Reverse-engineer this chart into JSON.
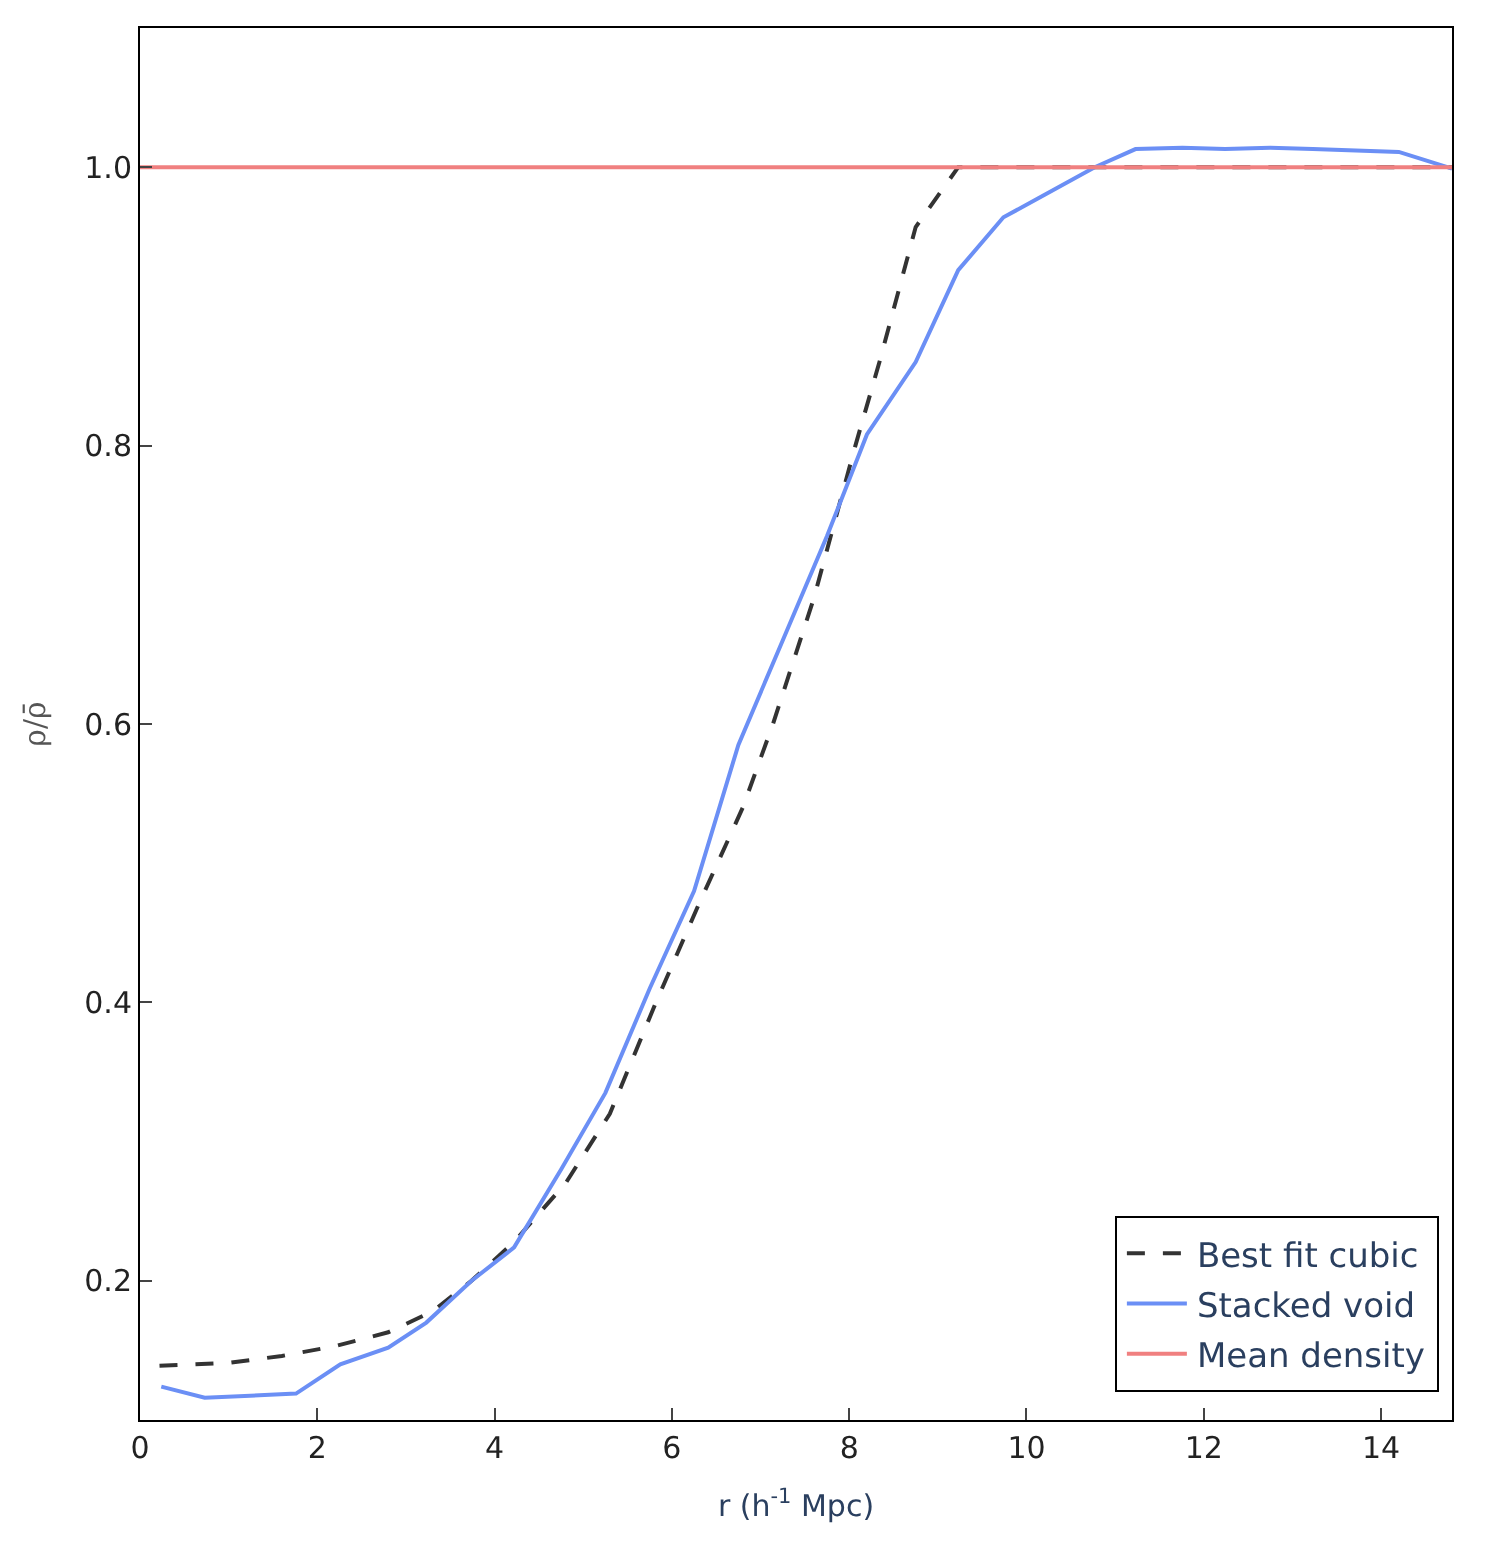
{
  "chart_data": {
    "type": "line",
    "xlabel": "r (h$^{-1}$ Mpc)",
    "ylabel": "ρ/ρ̄",
    "xlim": [
      0,
      14.8
    ],
    "ylim": [
      0.1,
      1.1
    ],
    "xticks": [
      0,
      2,
      4,
      6,
      8,
      10,
      12,
      14
    ],
    "yticks": [
      0.2,
      0.4,
      0.6,
      0.8,
      {
        "value": 1.0,
        "label": "1.0"
      }
    ],
    "legend": "bottom right",
    "series": [
      {
        "name": "Best fit cubic",
        "color": "#333333",
        "line_style": "dashed",
        "x": [
          0.22,
          1.0,
          1.6,
          2.2,
          2.8,
          3.3,
          3.74,
          4.22,
          4.8,
          5.3,
          5.82,
          6.3,
          6.8,
          7.14,
          7.6,
          8.07,
          8.35,
          8.75,
          9.23,
          14.8
        ],
        "values": [
          0.139,
          0.141,
          0.146,
          0.153,
          0.163,
          0.178,
          0.2,
          0.228,
          0.27,
          0.32,
          0.4,
          0.47,
          0.54,
          0.6,
          0.69,
          0.8,
          0.862,
          0.957,
          1.0,
          1.0
        ]
      },
      {
        "name": "Stacked void",
        "color": "#6b8ff5",
        "line_style": "solid",
        "x": [
          0.24,
          0.73,
          1.76,
          2.26,
          2.8,
          3.23,
          3.74,
          4.22,
          4.75,
          5.25,
          5.75,
          6.25,
          6.75,
          7.25,
          7.75,
          8.2,
          8.75,
          9.23,
          9.74,
          10.2,
          10.77,
          11.23,
          11.76,
          12.24,
          12.75,
          13.23,
          14.2,
          14.8
        ],
        "values": [
          0.124,
          0.116,
          0.119,
          0.14,
          0.152,
          0.17,
          0.2,
          0.224,
          0.28,
          0.335,
          0.41,
          0.48,
          0.585,
          0.66,
          0.735,
          0.808,
          0.86,
          0.926,
          0.964,
          0.98,
          1.0,
          1.013,
          1.014,
          1.013,
          1.014,
          1.013,
          1.011,
          0.999
        ]
      },
      {
        "name": "Mean density",
        "color": "#f08080",
        "line_style": "solid",
        "x": [
          0,
          14.8
        ],
        "values": [
          1.0,
          1.0
        ]
      }
    ]
  }
}
